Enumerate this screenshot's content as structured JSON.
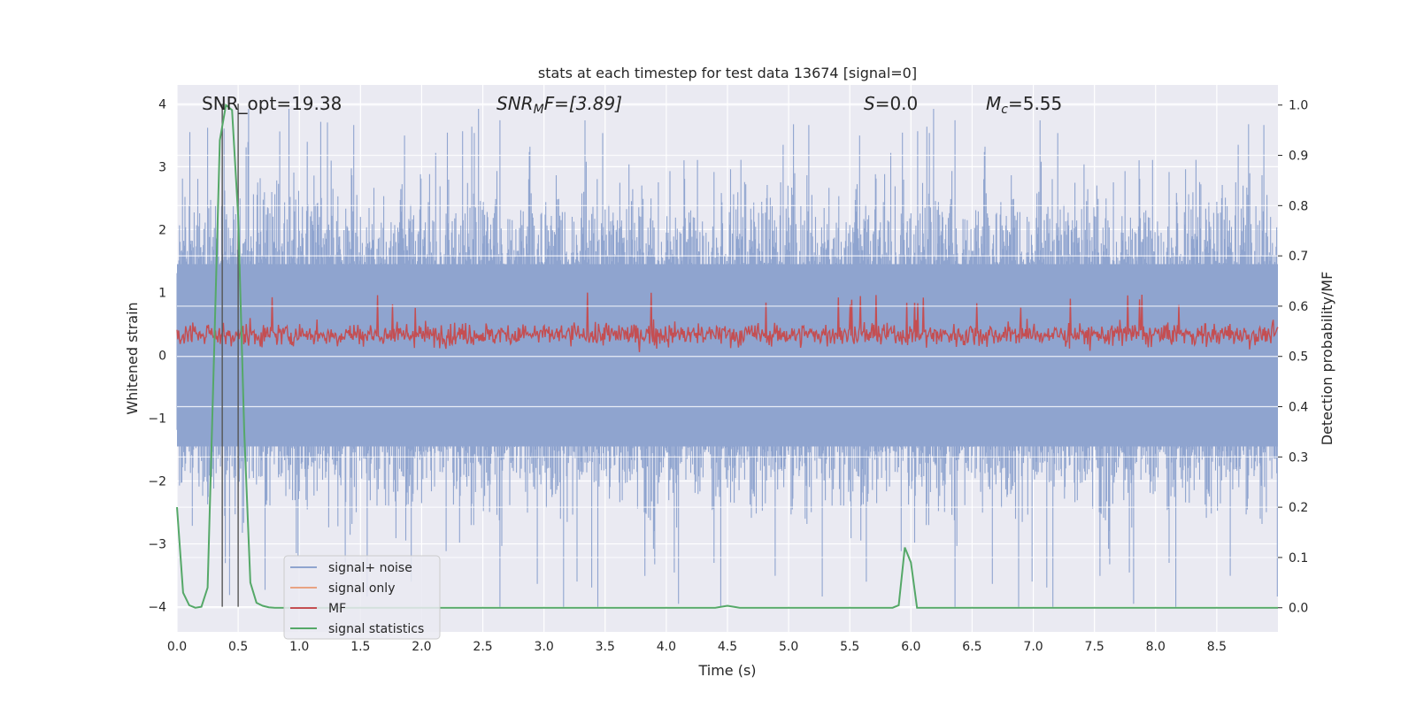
{
  "chart_data": {
    "type": "line",
    "title": "stats at each timestep for test data 13674 [signal=0]",
    "xlabel": "Time (s)",
    "ylabel": "Whitened strain",
    "ylabel_right": "Detection probability/MF",
    "xlim": [
      0,
      9.0
    ],
    "ylim": [
      -4.4,
      4.3
    ],
    "ylim_right": [
      -0.048,
      1.04
    ],
    "xticks": [
      "0.0",
      "0.5",
      "1.0",
      "1.5",
      "2.0",
      "2.5",
      "3.0",
      "3.5",
      "4.0",
      "4.5",
      "5.0",
      "5.5",
      "6.0",
      "6.5",
      "7.0",
      "7.5",
      "8.0",
      "8.5"
    ],
    "yticks": [
      "−4",
      "−3",
      "−2",
      "−1",
      "0",
      "1",
      "2",
      "3",
      "4"
    ],
    "yticks_right": [
      "0.0",
      "0.1",
      "0.2",
      "0.3",
      "0.4",
      "0.5",
      "0.6",
      "0.7",
      "0.8",
      "0.9",
      "1.0"
    ],
    "grid": true,
    "legend_location": "lower-left",
    "annotations": {
      "snr_opt": "SNR_opt=19.38",
      "snr_mf_label": "SNR",
      "snr_mf_sub": "M",
      "snr_mf_tail": "F=[3.89]",
      "s_label": "S",
      "s_tail": "=0.0",
      "mc_label": "M",
      "mc_sub": "c",
      "mc_tail": "=5.55"
    },
    "vlines_x": [
      0.37,
      0.5
    ],
    "series": [
      {
        "name": "signal+ noise",
        "color": "#8fa4cf",
        "axis": "left",
        "kind": "noise",
        "typical_envelope": [
          -2.0,
          2.2
        ],
        "peak_max": 3.92,
        "peak_min": -4.0
      },
      {
        "name": "signal only",
        "color": "#e8a383",
        "axis": "left",
        "kind": "flat",
        "values_note_y": 0
      },
      {
        "name": "MF",
        "color": "#c44e52",
        "axis": "left",
        "kind": "noise",
        "typical_envelope": [
          0.05,
          0.6
        ],
        "peak_max": 1.0
      },
      {
        "name": "signal statistics",
        "color": "#55a868",
        "axis": "right",
        "x": [
          0.0,
          0.05,
          0.1,
          0.15,
          0.2,
          0.25,
          0.3,
          0.35,
          0.4,
          0.45,
          0.5,
          0.55,
          0.6,
          0.65,
          0.7,
          0.75,
          0.8,
          0.9,
          1.0,
          1.5,
          2.0,
          3.0,
          4.0,
          4.4,
          4.5,
          4.6,
          5.0,
          5.5,
          5.85,
          5.9,
          5.95,
          6.0,
          6.05,
          6.1,
          7.0,
          8.0,
          9.0
        ],
        "values": [
          0.2,
          0.03,
          0.005,
          0.0,
          0.002,
          0.04,
          0.48,
          0.93,
          1.0,
          0.99,
          0.78,
          0.35,
          0.05,
          0.01,
          0.004,
          0.001,
          0.0,
          0.0,
          0.0,
          0.0,
          0.0,
          0.0,
          0.0,
          0.0,
          0.004,
          0.0,
          0.0,
          0.0,
          0.0,
          0.005,
          0.12,
          0.09,
          0.0,
          0.0,
          0.0,
          0.0,
          0.0
        ]
      }
    ]
  }
}
